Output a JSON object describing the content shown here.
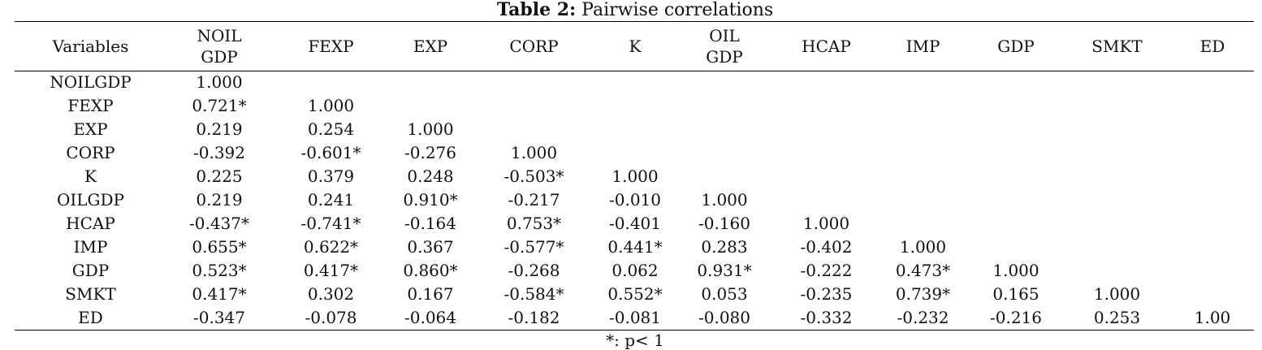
{
  "caption": {
    "label": "Table 2:",
    "title": "Pairwise correlations"
  },
  "table": {
    "corner_header": "Variables",
    "columns": [
      [
        "NOIL",
        "GDP"
      ],
      [
        "FEXP"
      ],
      [
        "EXP"
      ],
      [
        "CORP"
      ],
      [
        "K"
      ],
      [
        "OIL",
        "GDP"
      ],
      [
        "HCAP"
      ],
      [
        "IMP"
      ],
      [
        "GDP"
      ],
      [
        "SMKT"
      ],
      [
        "ED"
      ]
    ],
    "rows": [
      {
        "label": "NOILGDP",
        "values": [
          "1.000",
          "",
          "",
          "",
          "",
          "",
          "",
          "",
          "",
          "",
          ""
        ]
      },
      {
        "label": "FEXP",
        "values": [
          "0.721*",
          "1.000",
          "",
          "",
          "",
          "",
          "",
          "",
          "",
          "",
          ""
        ]
      },
      {
        "label": "EXP",
        "values": [
          "0.219",
          "0.254",
          "1.000",
          "",
          "",
          "",
          "",
          "",
          "",
          "",
          ""
        ]
      },
      {
        "label": "CORP",
        "values": [
          "-0.392",
          "-0.601*",
          "-0.276",
          "1.000",
          "",
          "",
          "",
          "",
          "",
          "",
          ""
        ]
      },
      {
        "label": "K",
        "values": [
          "0.225",
          "0.379",
          "0.248",
          "-0.503*",
          "1.000",
          "",
          "",
          "",
          "",
          "",
          ""
        ]
      },
      {
        "label": "OILGDP",
        "values": [
          "0.219",
          "0.241",
          "0.910*",
          "-0.217",
          "-0.010",
          "1.000",
          "",
          "",
          "",
          "",
          ""
        ]
      },
      {
        "label": "HCAP",
        "values": [
          "-0.437*",
          "-0.741*",
          "-0.164",
          "0.753*",
          "-0.401",
          "-0.160",
          "1.000",
          "",
          "",
          "",
          ""
        ]
      },
      {
        "label": "IMP",
        "values": [
          "0.655*",
          "0.622*",
          "0.367",
          "-0.577*",
          "0.441*",
          "0.283",
          "-0.402",
          "1.000",
          "",
          "",
          ""
        ]
      },
      {
        "label": "GDP",
        "values": [
          "0.523*",
          "0.417*",
          "0.860*",
          "-0.268",
          "0.062",
          "0.931*",
          "-0.222",
          "0.473*",
          "1.000",
          "",
          ""
        ]
      },
      {
        "label": "SMKT",
        "values": [
          "0.417*",
          "0.302",
          "0.167",
          "-0.584*",
          "0.552*",
          "0.053",
          "-0.235",
          "0.739*",
          "0.165",
          "1.000",
          ""
        ]
      },
      {
        "label": "ED",
        "values": [
          "-0.347",
          "-0.078",
          "-0.064",
          "-0.182",
          "-0.081",
          "-0.080",
          "-0.332",
          "-0.232",
          "-0.216",
          "0.253",
          "1.00"
        ]
      }
    ]
  },
  "footnote": "*: p< 1"
}
